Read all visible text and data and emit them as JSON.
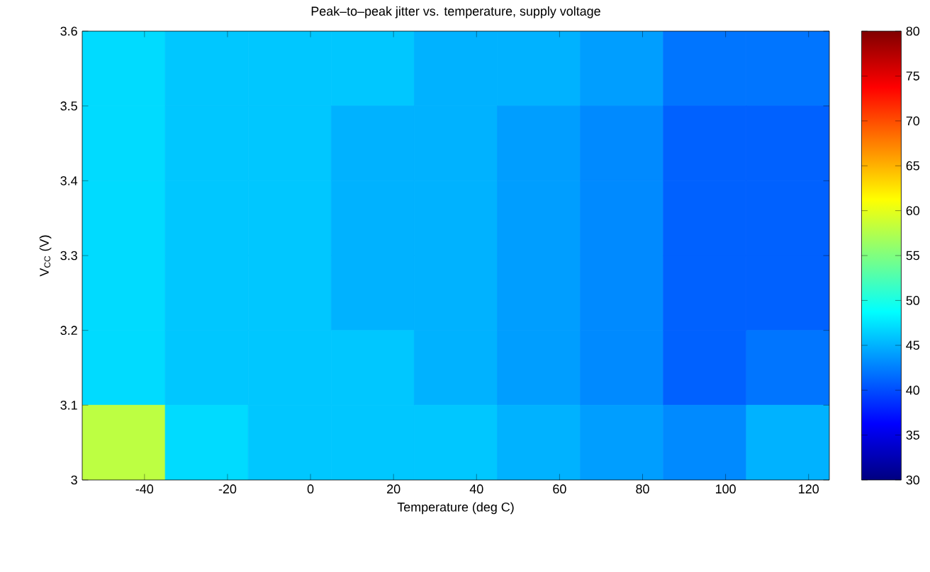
{
  "chart_data": {
    "type": "heatmap",
    "title": "Peak–to–peak jitter vs. temperature, supply voltage",
    "xlabel": "Temperature (deg C)",
    "ylabel": "V$_{CC}$ (V)",
    "x": [
      -45,
      -25,
      -5,
      15,
      35,
      55,
      75,
      95,
      115
    ],
    "y": [
      3.55,
      3.45,
      3.35,
      3.25,
      3.15,
      3.05
    ],
    "cells": [
      [
        47,
        46,
        46,
        46,
        45,
        45,
        44,
        42,
        42
      ],
      [
        47,
        46,
        46,
        45,
        45,
        44,
        43,
        41,
        41
      ],
      [
        47,
        46,
        46,
        45,
        45,
        44,
        43,
        41,
        41
      ],
      [
        47,
        46,
        46,
        45,
        45,
        44,
        43,
        41,
        41
      ],
      [
        47,
        46,
        46,
        46,
        45,
        44,
        43,
        41,
        42
      ],
      [
        58,
        47,
        46,
        46,
        46,
        45,
        44,
        43,
        45
      ]
    ],
    "xlim": [
      -55,
      125
    ],
    "ylim": [
      3.0,
      3.6
    ],
    "xticks": [
      -40,
      -20,
      0,
      20,
      40,
      60,
      80,
      100,
      120
    ],
    "yticks": [
      3,
      3.1,
      3.2,
      3.3,
      3.4,
      3.5,
      3.6
    ],
    "clim": [
      30,
      80
    ],
    "cticks": [
      30,
      35,
      40,
      45,
      50,
      55,
      60,
      65,
      70,
      75,
      80
    ]
  }
}
